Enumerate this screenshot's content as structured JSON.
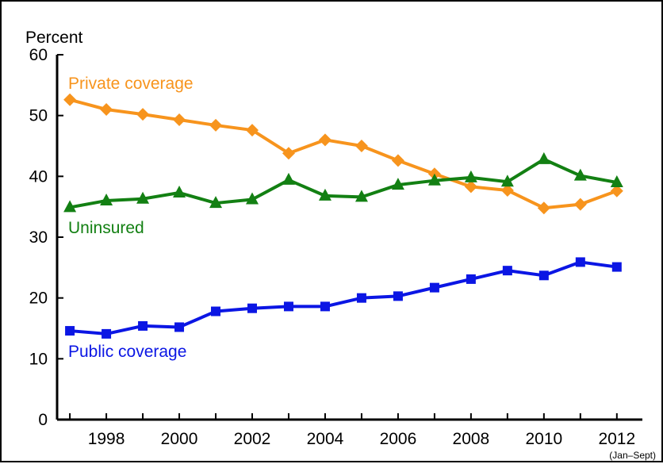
{
  "chart_data": {
    "type": "line",
    "title": "",
    "xlabel": "",
    "ylabel": "Percent",
    "x": [
      1997,
      1998,
      1999,
      2000,
      2001,
      2002,
      2003,
      2004,
      2005,
      2006,
      2007,
      2008,
      2009,
      2010,
      2011,
      2012
    ],
    "x_ticks": [
      "1998",
      "2000",
      "2002",
      "2004",
      "2006",
      "2008",
      "2010",
      "2012"
    ],
    "x_tick_values": [
      1998,
      2000,
      2002,
      2004,
      2006,
      2008,
      2010,
      2012
    ],
    "x_note": "(Jan–Sept)",
    "y_ticks": [
      "0",
      "10",
      "20",
      "30",
      "40",
      "50",
      "60"
    ],
    "ylim": [
      0,
      60
    ],
    "grid": false,
    "legend": "inline labels",
    "series": [
      {
        "name": "Private coverage",
        "color": "#f7941d",
        "marker": "diamond",
        "values": [
          52.6,
          51.0,
          50.2,
          49.3,
          48.4,
          47.6,
          43.8,
          46.0,
          45.0,
          42.6,
          40.4,
          38.3,
          37.7,
          34.8,
          35.4,
          37.6
        ]
      },
      {
        "name": "Uninsured",
        "color": "#138013",
        "marker": "triangle",
        "values": [
          34.9,
          36.0,
          36.3,
          37.3,
          35.6,
          36.2,
          39.4,
          36.8,
          36.6,
          38.6,
          39.3,
          39.8,
          39.1,
          42.8,
          40.1,
          39.0
        ]
      },
      {
        "name": "Public coverage",
        "color": "#0b16e4",
        "marker": "square",
        "values": [
          14.6,
          14.1,
          15.4,
          15.2,
          17.8,
          18.3,
          18.6,
          18.6,
          20.0,
          20.3,
          21.7,
          23.1,
          24.5,
          23.7,
          25.9,
          25.1
        ]
      }
    ]
  }
}
